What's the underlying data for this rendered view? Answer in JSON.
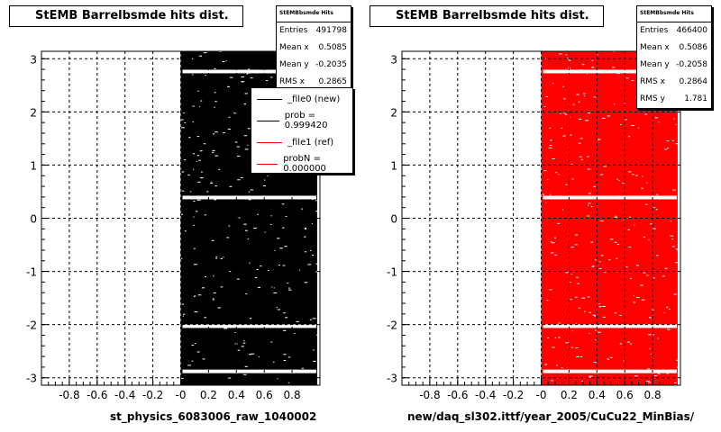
{
  "chart_data": [
    {
      "type": "heatmap",
      "title": "StEMB Barrelbsmde hits dist.",
      "xlabel": "st_physics_6083006_raw_1040002",
      "ylabel": "",
      "xlim": [
        -1,
        1
      ],
      "ylim": [
        -3.14,
        3.14
      ],
      "x_ticks": [
        "-0.8",
        "-0.6",
        "-0.4",
        "-0.2",
        "-0",
        "0.2",
        "0.4",
        "0.6",
        "0.8"
      ],
      "y_ticks": [
        "-3",
        "-2",
        "-1",
        "0",
        "1",
        "2",
        "3"
      ],
      "grid": true,
      "fill_color": "#000000",
      "occupied_x_range": [
        0,
        0.98
      ],
      "gap_bands_y": [
        -2.88,
        -2.03,
        0.39,
        2.76
      ],
      "stats": {
        "name": "StEMBbsmde Hits",
        "rows": [
          {
            "label": "Entries",
            "value": "491798"
          },
          {
            "label": "Mean x",
            "value": "0.5085"
          },
          {
            "label": "Mean y",
            "value": "-0.2035"
          },
          {
            "label": "RMS x",
            "value": "0.2865"
          }
        ]
      },
      "legend": {
        "placement": "top-right",
        "entries": [
          {
            "label": "_file0 (new)",
            "color": "#000000"
          },
          {
            "label": "prob = 0.999420",
            "color": "#000000"
          },
          {
            "label": "_file1 (ref)",
            "color": "#ff0000"
          },
          {
            "label": "probN = 0.000000",
            "color": "#ff0000"
          }
        ]
      }
    },
    {
      "type": "heatmap",
      "title": "StEMB Barrelbsmde hits dist.",
      "xlabel": "new/daq_sl302.ittf/year_2005/CuCu22_MinBias/",
      "ylabel": "",
      "xlim": [
        -1,
        1
      ],
      "ylim": [
        -3.14,
        3.14
      ],
      "x_ticks": [
        "-0.8",
        "-0.6",
        "-0.4",
        "-0.2",
        "-0",
        "0.2",
        "0.4",
        "0.6",
        "0.8"
      ],
      "y_ticks": [
        "-3",
        "-2",
        "-1",
        "0",
        "1",
        "2",
        "3"
      ],
      "grid": true,
      "fill_color": "#ff0000",
      "occupied_x_range": [
        0,
        0.98
      ],
      "gap_bands_y": [
        -2.88,
        -2.03,
        0.39,
        2.76
      ],
      "stats": {
        "name": "StEMBbsmde Hits",
        "rows": [
          {
            "label": "Entries",
            "value": "466400"
          },
          {
            "label": "Mean x",
            "value": "0.5086"
          },
          {
            "label": "Mean y",
            "value": "-0.2058"
          },
          {
            "label": "RMS x",
            "value": "0.2864"
          },
          {
            "label": "RMS y",
            "value": "1.781"
          }
        ]
      }
    }
  ]
}
